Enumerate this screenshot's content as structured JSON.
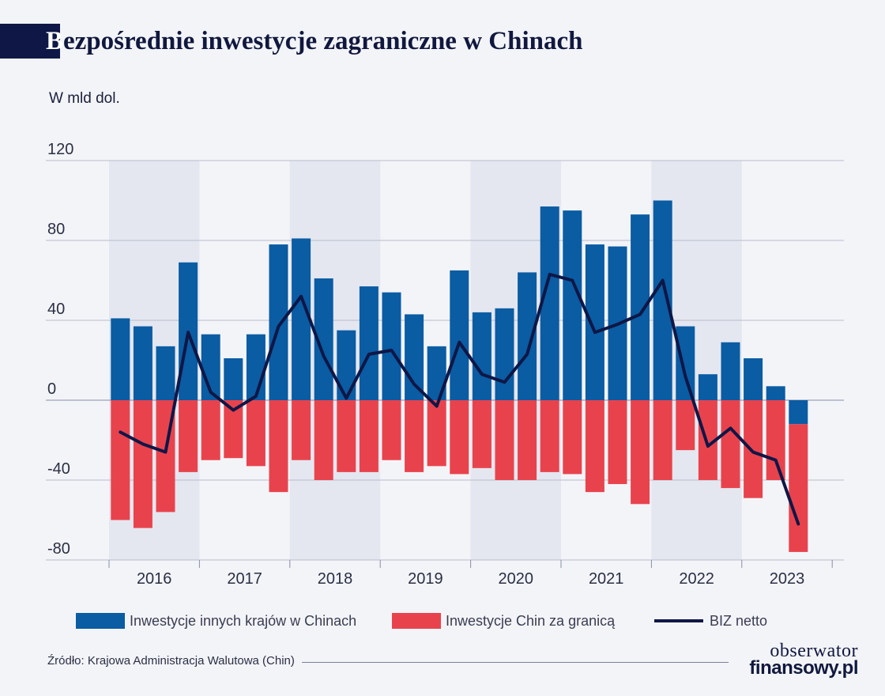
{
  "title": {
    "first_letter": "B",
    "rest": "ezpośrednie inwestycje zagraniczne w Chinach"
  },
  "unit_label": "W mld dol.",
  "colors": {
    "inflows": "#0a5ca3",
    "outflows": "#e8434d",
    "net": "#0f1746",
    "year_shading": "#e4e7f0",
    "background": "#f3f4f8"
  },
  "chart_data": {
    "type": "bar",
    "stacked": true,
    "ylim": [
      -80,
      120
    ],
    "yticks": [
      -80,
      -40,
      0,
      40,
      80,
      120
    ],
    "grid": true,
    "legend_position": "bottom",
    "years": [
      "2016",
      "2017",
      "2018",
      "2019",
      "2020",
      "2021",
      "2022",
      "2023"
    ],
    "shaded_years": [
      "2016",
      "2018",
      "2020",
      "2022"
    ],
    "quarters_per_year": 4,
    "series": [
      {
        "name": "Inwestycje innych krajów w Chinach",
        "kind": "bar",
        "values": [
          41,
          37,
          27,
          69,
          33,
          21,
          33,
          78,
          81,
          61,
          35,
          57,
          54,
          43,
          27,
          65,
          44,
          46,
          64,
          97,
          95,
          78,
          77,
          93,
          100,
          37,
          13,
          29,
          21,
          7,
          -12
        ]
      },
      {
        "name": "Inwestycje Chin za granicą",
        "kind": "bar",
        "values": [
          -60,
          -64,
          -56,
          -36,
          -30,
          -29,
          -33,
          -46,
          -30,
          -40,
          -36,
          -36,
          -30,
          -36,
          -33,
          -37,
          -34,
          -40,
          -40,
          -36,
          -37,
          -46,
          -42,
          -52,
          -40,
          -25,
          -40,
          -44,
          -49,
          -40,
          -64
        ]
      },
      {
        "name": "BIZ netto",
        "kind": "line",
        "values": [
          -16,
          -22,
          -26,
          34,
          4,
          -5,
          2,
          37,
          52,
          22,
          1,
          23,
          25,
          8,
          -3,
          29,
          13,
          9,
          23,
          63,
          60,
          34,
          38,
          43,
          60,
          12,
          -23,
          -14,
          -26,
          -30,
          -62
        ]
      }
    ]
  },
  "legend": {
    "inflows": "Inwestycje innych krajów w Chinach",
    "outflows": "Inwestycje Chin za granicą",
    "net": "BIZ netto"
  },
  "source": "Źródło: Krajowa Administracja Walutowa (Chin)",
  "logo": {
    "line1": "obserwator",
    "line2": "finansowy.pl"
  }
}
